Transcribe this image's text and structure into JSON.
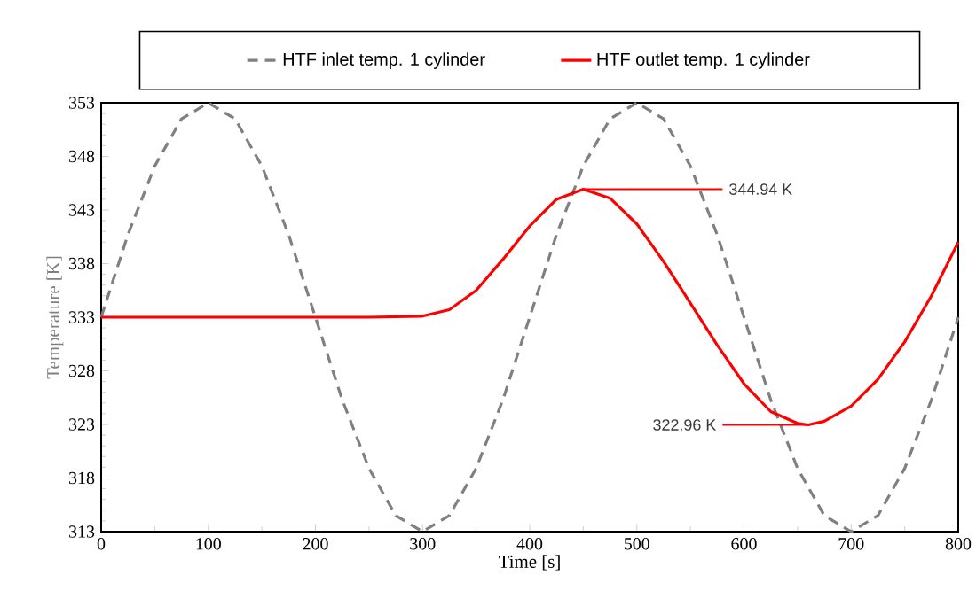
{
  "chart_data": {
    "type": "line",
    "xlabel": "Time [s]",
    "ylabel": "Temperature [K]",
    "xlim": [
      0,
      800
    ],
    "xticks": [
      0,
      100,
      200,
      300,
      400,
      500,
      600,
      700,
      800
    ],
    "ylim": [
      313,
      353
    ],
    "yticks": [
      313,
      318,
      323,
      328,
      333,
      338,
      343,
      348,
      353
    ],
    "grid": false,
    "legend": "top",
    "marker": "none",
    "series": [
      {
        "name": "HTF inlet temp.  1 cylinder",
        "color": "#808080",
        "line_style": "dashed",
        "x": [
          0,
          25,
          50,
          75,
          100,
          125,
          150,
          175,
          200,
          225,
          250,
          275,
          300,
          325,
          350,
          375,
          400,
          425,
          450,
          475,
          500,
          525,
          550,
          575,
          600,
          625,
          650,
          675,
          700,
          725,
          750,
          775,
          800
        ],
        "values": [
          333,
          340.7,
          347.1,
          351.5,
          353,
          351.5,
          347.1,
          340.7,
          333,
          325.3,
          318.9,
          314.5,
          313,
          314.5,
          318.9,
          325.3,
          333,
          340.7,
          347.1,
          351.5,
          353,
          351.5,
          347.1,
          340.7,
          333,
          325.3,
          318.9,
          314.5,
          313,
          314.5,
          318.9,
          325.3,
          333
        ]
      },
      {
        "name": "HTF outlet temp.  1 cylinder",
        "color": "#ff0000",
        "line_style": "solid",
        "x": [
          0,
          50,
          100,
          150,
          200,
          250,
          300,
          325,
          350,
          375,
          400,
          425,
          450,
          475,
          500,
          525,
          550,
          575,
          600,
          625,
          650,
          660,
          675,
          700,
          725,
          750,
          775,
          800
        ],
        "values": [
          333,
          333,
          333,
          333,
          333,
          333,
          333.1,
          333.7,
          335.5,
          338.4,
          341.5,
          344,
          344.94,
          344.1,
          341.7,
          338.2,
          334.3,
          330.4,
          326.8,
          324.2,
          323.1,
          322.96,
          323.3,
          324.7,
          327.2,
          330.7,
          335,
          340
        ]
      }
    ],
    "annotations": [
      {
        "text": "344.94 K",
        "x": 450,
        "y": 344.94
      },
      {
        "text": "322.96 K",
        "x": 660,
        "y": 322.96
      }
    ]
  }
}
